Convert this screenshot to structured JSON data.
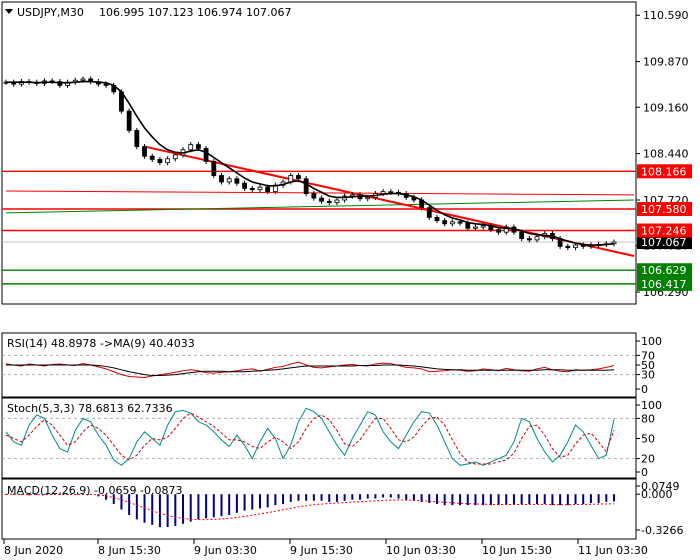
{
  "chart_data": [
    {
      "type": "candlestick",
      "header": {
        "symbol": "USDJPY,M30",
        "ohlc": "106.995 107.123 106.974 107.067"
      },
      "ylim": [
        106.12,
        110.78
      ],
      "y_ticks": [
        "110.590",
        "109.870",
        "109.160",
        "108.440",
        "107.720",
        "107.010",
        "106.290"
      ],
      "x_ticks": [
        "8 Jun 2020",
        "8 Jun 15:30",
        "9 Jun 03:30",
        "9 Jun 15:30",
        "10 Jun 03:30",
        "10 Jun 15:30",
        "11 Jun 03:30"
      ],
      "price_series": [
        109.55,
        109.52,
        109.56,
        109.55,
        109.53,
        109.57,
        109.56,
        109.5,
        109.55,
        109.58,
        109.6,
        109.56,
        109.52,
        109.5,
        109.4,
        109.1,
        108.8,
        108.55,
        108.4,
        108.35,
        108.3,
        108.36,
        108.42,
        108.5,
        108.58,
        108.52,
        108.32,
        108.1,
        108.0,
        108.05,
        107.98,
        107.9,
        107.88,
        107.92,
        107.85,
        107.95,
        108.0,
        108.1,
        108.05,
        107.82,
        107.75,
        107.7,
        107.68,
        107.72,
        107.78,
        107.8,
        107.74,
        107.76,
        107.82,
        107.85,
        107.84,
        107.82,
        107.76,
        107.72,
        107.6,
        107.45,
        107.4,
        107.35,
        107.38,
        107.36,
        107.28,
        107.3,
        107.32,
        107.26,
        107.22,
        107.3,
        107.22,
        107.12,
        107.1,
        107.15,
        107.2,
        107.12,
        107.0,
        106.98,
        107.02,
        107.0,
        107.02,
        107.03,
        107.04,
        107.067
      ],
      "moving_average": [
        109.55,
        109.55,
        109.55,
        109.55,
        109.54,
        109.55,
        109.55,
        109.54,
        109.54,
        109.55,
        109.56,
        109.56,
        109.55,
        109.54,
        109.5,
        109.4,
        109.22,
        109.02,
        108.84,
        108.7,
        108.58,
        108.5,
        108.46,
        108.45,
        108.48,
        108.5,
        108.46,
        108.38,
        108.3,
        108.22,
        108.14,
        108.06,
        108.0,
        107.97,
        107.94,
        107.94,
        107.96,
        108.0,
        108.02,
        107.97,
        107.9,
        107.84,
        107.78,
        107.76,
        107.76,
        107.77,
        107.78,
        107.78,
        107.79,
        107.81,
        107.82,
        107.82,
        107.8,
        107.77,
        107.72,
        107.64,
        107.56,
        107.49,
        107.44,
        107.41,
        107.37,
        107.35,
        107.34,
        107.32,
        107.29,
        107.28,
        107.27,
        107.24,
        107.2,
        107.18,
        107.17,
        107.16,
        107.12,
        107.08,
        107.05,
        107.03,
        107.02,
        107.02,
        107.03,
        107.04
      ],
      "price_label": "107.067",
      "levels": [
        {
          "label": "108.166",
          "value": 108.166,
          "color": "#ff0000"
        },
        {
          "label": "107.580",
          "value": 107.58,
          "color": "#ff0000"
        },
        {
          "label": "107.246",
          "value": 107.246,
          "color": "#ff0000"
        },
        {
          "label": "106.629",
          "value": 106.629,
          "color": "#008000"
        },
        {
          "label": "106.417",
          "value": 106.417,
          "color": "#008000"
        }
      ],
      "trendline": {
        "from": [
          18,
          108.55
        ],
        "to": [
          79,
          106.85
        ],
        "color": "#ff0000"
      },
      "channel_lines": [
        {
          "from": [
            0,
            107.86
          ],
          "to": [
            79,
            107.8
          ],
          "color": "#ff0000"
        },
        {
          "from": [
            0,
            107.52
          ],
          "to": [
            79,
            107.72
          ],
          "color": "#008000"
        }
      ],
      "colors": {
        "bull": "#000000",
        "bear": "#000000",
        "ma": "#000000"
      }
    },
    {
      "type": "line",
      "header": "RSI(14) 48.8978  ->MA(9) 40.4033",
      "ylim": [
        0,
        100
      ],
      "y_ticks": [
        "100",
        "70",
        "50",
        "30",
        "0"
      ],
      "levels": [
        70,
        30
      ],
      "series": [
        {
          "values": [
            52,
            50,
            48,
            52,
            50,
            48,
            51,
            52,
            50,
            49,
            53,
            50,
            46,
            42,
            36,
            30,
            26,
            25,
            24,
            27,
            30,
            32,
            35,
            38,
            40,
            38,
            34,
            33,
            35,
            36,
            38,
            40,
            42,
            37,
            41,
            45,
            47,
            52,
            56,
            50,
            45,
            44,
            46,
            48,
            50,
            51,
            49,
            48,
            52,
            54,
            53,
            49,
            45,
            44,
            42,
            36,
            37,
            38,
            40,
            39,
            37,
            38,
            42,
            40,
            38,
            43,
            40,
            38,
            37,
            42,
            45,
            40,
            37,
            36,
            40,
            39,
            40,
            42,
            45,
            49
          ],
          "color": "#d20000"
        },
        {
          "values": [
            50,
            50,
            50,
            50,
            50,
            50,
            50,
            50,
            50,
            50,
            50,
            50,
            49,
            47,
            44,
            40,
            36,
            33,
            30,
            28,
            28,
            29,
            30,
            32,
            34,
            36,
            37,
            37,
            37,
            36,
            36,
            36,
            37,
            38,
            39,
            40,
            42,
            44,
            46,
            48,
            48,
            48,
            48,
            48,
            48,
            48,
            49,
            49,
            49,
            50,
            50,
            50,
            49,
            48,
            46,
            44,
            42,
            41,
            40,
            40,
            39,
            39,
            39,
            39,
            39,
            39,
            39,
            39,
            39,
            39,
            40,
            40,
            40,
            39,
            39,
            39,
            39,
            39,
            39,
            40
          ],
          "color": "#000000"
        }
      ]
    },
    {
      "type": "line",
      "header": "Stoch(5,3,3) 78.6813 62.7336",
      "ylim": [
        0,
        100
      ],
      "y_ticks": [
        "100",
        "80",
        "50",
        "20",
        "0"
      ],
      "levels": [
        80,
        20
      ],
      "series": [
        {
          "values": [
            60,
            45,
            40,
            70,
            85,
            80,
            55,
            35,
            30,
            62,
            80,
            75,
            55,
            40,
            18,
            10,
            20,
            45,
            60,
            50,
            40,
            70,
            90,
            92,
            88,
            75,
            70,
            60,
            48,
            38,
            55,
            40,
            20,
            45,
            65,
            50,
            20,
            40,
            75,
            95,
            90,
            80,
            60,
            40,
            25,
            50,
            70,
            90,
            85,
            60,
            45,
            35,
            55,
            75,
            90,
            88,
            70,
            45,
            20,
            10,
            12,
            15,
            10,
            15,
            20,
            25,
            45,
            80,
            75,
            50,
            30,
            15,
            25,
            45,
            70,
            60,
            40,
            20,
            25,
            78.7
          ],
          "color": "#008b8b"
        },
        {
          "values": [
            55,
            50,
            45,
            55,
            68,
            78,
            70,
            55,
            40,
            45,
            60,
            70,
            65,
            55,
            40,
            25,
            18,
            25,
            40,
            50,
            48,
            52,
            65,
            80,
            88,
            82,
            75,
            68,
            58,
            48,
            48,
            45,
            38,
            35,
            45,
            52,
            45,
            35,
            45,
            65,
            80,
            85,
            78,
            62,
            42,
            38,
            48,
            65,
            80,
            80,
            65,
            48,
            45,
            52,
            68,
            80,
            82,
            70,
            48,
            28,
            15,
            12,
            12,
            12,
            15,
            18,
            28,
            50,
            68,
            70,
            55,
            35,
            22,
            25,
            42,
            55,
            58,
            45,
            30,
            62.7
          ],
          "color": "#d20000"
        }
      ]
    },
    {
      "type": "bar",
      "header": "MACD(12,26,9) -0.0659 -0.0873",
      "ylim": [
        -0.3266,
        0.0749
      ],
      "y_ticks": [
        "0.0749",
        "0.000",
        "-0.3266"
      ],
      "histogram": [
        0,
        0,
        -0.005,
        -0.01,
        -0.005,
        0,
        0.005,
        0,
        -0.005,
        -0.005,
        0,
        0,
        -0.02,
        -0.05,
        -0.09,
        -0.14,
        -0.19,
        -0.23,
        -0.26,
        -0.28,
        -0.3,
        -0.3,
        -0.29,
        -0.27,
        -0.25,
        -0.23,
        -0.22,
        -0.21,
        -0.2,
        -0.19,
        -0.17,
        -0.15,
        -0.14,
        -0.13,
        -0.12,
        -0.1,
        -0.09,
        -0.07,
        -0.06,
        -0.06,
        -0.06,
        -0.06,
        -0.07,
        -0.07,
        -0.06,
        -0.05,
        -0.05,
        -0.04,
        -0.04,
        -0.03,
        -0.03,
        -0.04,
        -0.05,
        -0.06,
        -0.07,
        -0.08,
        -0.09,
        -0.1,
        -0.1,
        -0.1,
        -0.1,
        -0.1,
        -0.1,
        -0.1,
        -0.1,
        -0.09,
        -0.09,
        -0.09,
        -0.09,
        -0.09,
        -0.09,
        -0.1,
        -0.1,
        -0.1,
        -0.09,
        -0.09,
        -0.08,
        -0.08,
        -0.07,
        -0.066
      ],
      "signal": [
        0,
        0,
        -0.002,
        -0.004,
        -0.004,
        -0.004,
        -0.002,
        -0.002,
        -0.003,
        -0.003,
        -0.003,
        -0.002,
        -0.006,
        -0.015,
        -0.03,
        -0.05,
        -0.075,
        -0.1,
        -0.125,
        -0.15,
        -0.175,
        -0.195,
        -0.21,
        -0.22,
        -0.228,
        -0.232,
        -0.232,
        -0.23,
        -0.226,
        -0.22,
        -0.212,
        -0.202,
        -0.192,
        -0.18,
        -0.168,
        -0.155,
        -0.142,
        -0.128,
        -0.115,
        -0.105,
        -0.096,
        -0.09,
        -0.085,
        -0.08,
        -0.076,
        -0.072,
        -0.068,
        -0.064,
        -0.06,
        -0.056,
        -0.054,
        -0.053,
        -0.054,
        -0.056,
        -0.06,
        -0.064,
        -0.069,
        -0.074,
        -0.079,
        -0.083,
        -0.087,
        -0.089,
        -0.091,
        -0.093,
        -0.094,
        -0.094,
        -0.094,
        -0.094,
        -0.093,
        -0.093,
        -0.093,
        -0.094,
        -0.095,
        -0.095,
        -0.094,
        -0.093,
        -0.092,
        -0.09,
        -0.089,
        -0.087
      ],
      "colors": {
        "bar": "#000080",
        "signal": "#ff0000"
      }
    }
  ]
}
